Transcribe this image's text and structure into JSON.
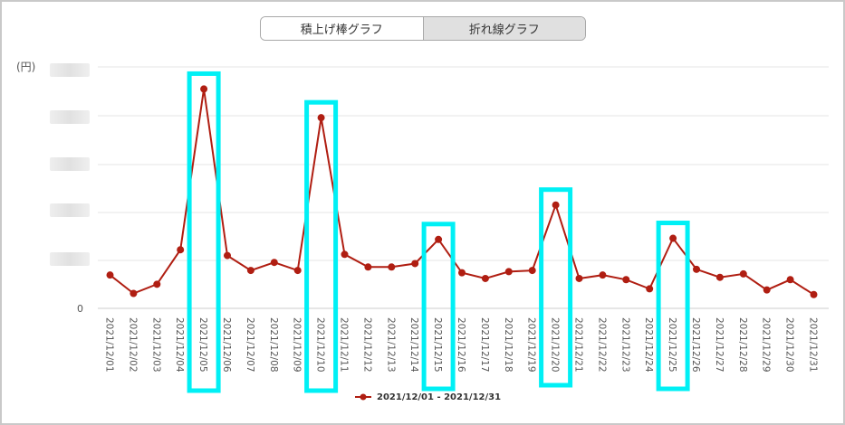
{
  "toggle": {
    "stacked_label": "積上げ棒グラフ",
    "line_label": "折れ線グラフ",
    "selected": "line"
  },
  "colors": {
    "series": "#b01e12",
    "highlight": "#00f0f5",
    "grid": "#e6e6e6",
    "axis": "#cccccc"
  },
  "chart_data": {
    "type": "line",
    "ylabel": "(円)",
    "y_tick_zero": "0",
    "ylim": [
      0,
      100
    ],
    "y_gridlines": [
      20,
      40,
      60,
      80,
      100
    ],
    "legend_position": "bottom",
    "categories": [
      "2021/12/01",
      "2021/12/02",
      "2021/12/03",
      "2021/12/04",
      "2021/12/05",
      "2021/12/06",
      "2021/12/07",
      "2021/12/08",
      "2021/12/09",
      "2021/12/10",
      "2021/12/11",
      "2021/12/12",
      "2021/12/13",
      "2021/12/14",
      "2021/12/15",
      "2021/12/16",
      "2021/12/17",
      "2021/12/18",
      "2021/12/19",
      "2021/12/20",
      "2021/12/21",
      "2021/12/22",
      "2021/12/23",
      "2021/12/24",
      "2021/12/25",
      "2021/12/26",
      "2021/12/27",
      "2021/12/28",
      "2021/12/29",
      "2021/12/30",
      "2021/12/31"
    ],
    "series": [
      {
        "name": "2021/12/01 - 2021/12/31",
        "values": [
          14.5,
          6.5,
          10.5,
          25.5,
          95.5,
          23,
          16.5,
          20,
          16.5,
          83,
          23.5,
          18,
          18,
          19.5,
          30,
          15.5,
          13,
          16,
          16.5,
          45,
          13,
          14.5,
          12.5,
          8.5,
          30.5,
          17,
          13.5,
          15,
          8,
          12.5,
          6
        ]
      }
    ],
    "highlighted_dates": [
      "2021/12/05",
      "2021/12/10",
      "2021/12/15",
      "2021/12/20",
      "2021/12/25"
    ]
  }
}
